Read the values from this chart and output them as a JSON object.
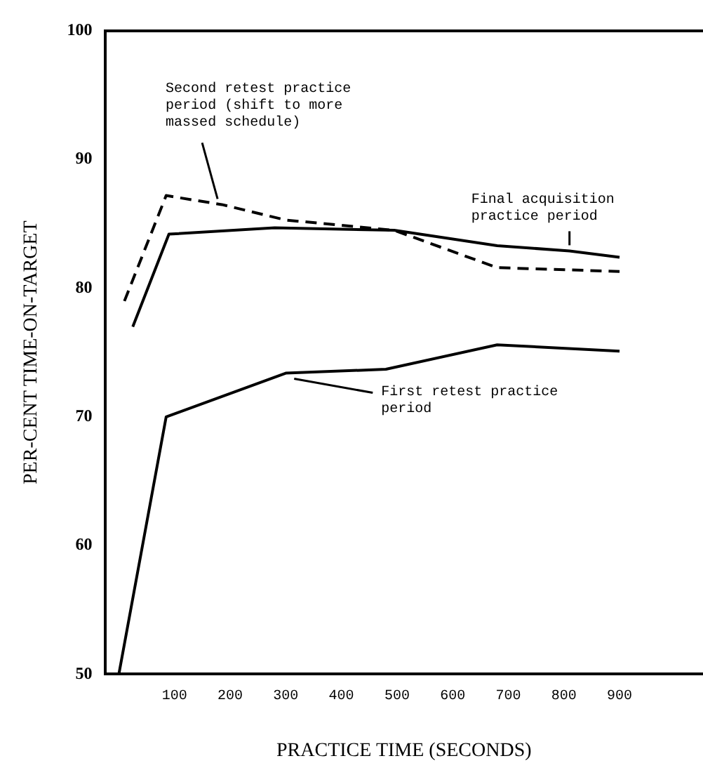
{
  "chart_data": {
    "type": "line",
    "xlabel": "PRACTICE TIME (SECONDS)",
    "ylabel": "PER-CENT TIME-ON-TARGET",
    "xlim": [
      -25,
      1050
    ],
    "xticks": [
      100,
      200,
      300,
      400,
      500,
      600,
      700,
      800,
      900
    ],
    "ylim": [
      50,
      100
    ],
    "yticks": [
      50,
      60,
      70,
      80,
      90,
      100
    ],
    "grid": false,
    "legend": false,
    "marker": "none",
    "series": [
      {
        "name": "Second retest practice period (shift to more massed schedule)",
        "color": "#000000",
        "line_style": "dashed",
        "x": [
          10,
          85,
          185,
          300,
          495,
          680,
          900
        ],
        "values": [
          79,
          87.2,
          86.5,
          85.3,
          84.5,
          81.6,
          81.3
        ]
      },
      {
        "name": "Final acquisition practice period",
        "color": "#000000",
        "line_style": "solid",
        "x": [
          25,
          90,
          280,
          495,
          680,
          810,
          900
        ],
        "values": [
          77,
          84.2,
          84.7,
          84.5,
          83.3,
          82.9,
          82.4
        ]
      },
      {
        "name": "First retest practice period",
        "color": "#000000",
        "line_style": "solid",
        "x": [
          0,
          85,
          300,
          480,
          680,
          900
        ],
        "values": [
          50,
          70,
          73.4,
          73.7,
          75.6,
          75.1
        ]
      }
    ]
  }
}
